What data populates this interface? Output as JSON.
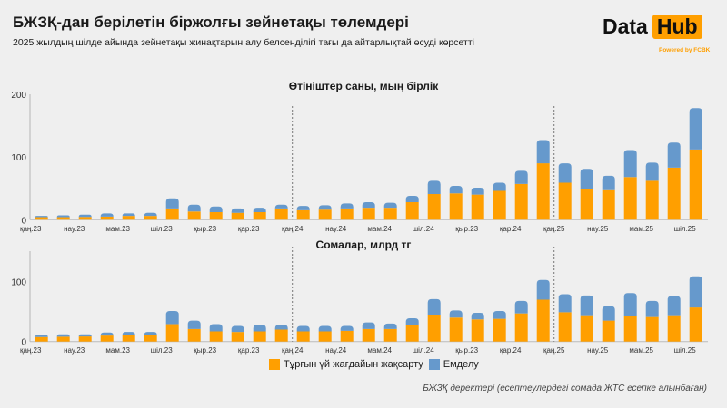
{
  "header": {
    "title": "БЖЗҚ-дан берілетін біржолғы зейнетақы төлемдері",
    "subtitle": "2025 жылдың шілде айында зейнетақы жинақтарын алу белсенділігі тағы да айтарлықтай өсуді көрсетті"
  },
  "logo": {
    "word1": "Data",
    "word2": "Hub",
    "tagline": "Powered by FCBK"
  },
  "colors": {
    "housing": "#ff9f00",
    "treatment": "#6699cc",
    "background": "#efefef"
  },
  "legend": {
    "items": [
      "Тұрғын үй жағдайын жақсарту",
      "Емделу"
    ]
  },
  "source": "БЖЗҚ деректері (есептеулердегі сомада ЖТС есепке алынбаған)",
  "chart_data": [
    {
      "type": "bar",
      "stacked": true,
      "title": "Өтініштер саны, мың бірлік",
      "ylim": [
        0,
        200
      ],
      "yticks": [
        0,
        100,
        200
      ],
      "xtick_labels": [
        "қаң.23",
        "нау.23",
        "мам.23",
        "шіл.23",
        "қыр.23",
        "қар.23",
        "қаң.24",
        "нау.24",
        "мам.24",
        "шіл.24",
        "қыр.23",
        "қар.24",
        "қаң.25",
        "нау.25",
        "мам.25",
        "шіл.25"
      ],
      "categories": [
        "2023-01",
        "2023-02",
        "2023-03",
        "2023-04",
        "2023-05",
        "2023-06",
        "2023-07",
        "2023-08",
        "2023-09",
        "2023-10",
        "2023-11",
        "2023-12",
        "2024-01",
        "2024-02",
        "2024-03",
        "2024-04",
        "2024-05",
        "2024-06",
        "2024-07",
        "2024-08",
        "2024-09",
        "2024-10",
        "2024-11",
        "2024-12",
        "2025-01",
        "2025-02",
        "2025-03",
        "2025-04",
        "2025-05",
        "2025-06",
        "2025-07"
      ],
      "year_separators": [
        "2024-01",
        "2025-01"
      ],
      "series": [
        {
          "name": "Тұрғын үй жағдайын жақсарту",
          "values": [
            4,
            4,
            4.5,
            5,
            6,
            6,
            18,
            13,
            12,
            11,
            12,
            18,
            15,
            16,
            18,
            19,
            19,
            28,
            41,
            42,
            40,
            46,
            57,
            90,
            59,
            49,
            47,
            68,
            62,
            83,
            112
          ]
        },
        {
          "name": "Емделу",
          "values": [
            2,
            3,
            3.5,
            5,
            4,
            5,
            16,
            11,
            9,
            7,
            7,
            6,
            7,
            7,
            8,
            9,
            8,
            10,
            21,
            12,
            11,
            13,
            21,
            37,
            31,
            32,
            23,
            43,
            29,
            40,
            66
          ]
        }
      ],
      "grid": false
    },
    {
      "type": "bar",
      "stacked": true,
      "title": "Сомалар, млрд тг",
      "ylim": [
        0,
        150
      ],
      "yticks": [
        0,
        100
      ],
      "xtick_labels": [
        "қаң.23",
        "нау.23",
        "мам.23",
        "шіл.23",
        "қыр.23",
        "қар.23",
        "қаң.24",
        "нау.24",
        "мам.24",
        "шіл.24",
        "қыр.23",
        "қар.24",
        "қаң.25",
        "нау.25",
        "мам.25",
        "шіл.25"
      ],
      "categories": [
        "2023-01",
        "2023-02",
        "2023-03",
        "2023-04",
        "2023-05",
        "2023-06",
        "2023-07",
        "2023-08",
        "2023-09",
        "2023-10",
        "2023-11",
        "2023-12",
        "2024-01",
        "2024-02",
        "2024-03",
        "2024-04",
        "2024-05",
        "2024-06",
        "2024-07",
        "2024-08",
        "2024-09",
        "2024-10",
        "2024-11",
        "2024-12",
        "2025-01",
        "2025-02",
        "2025-03",
        "2025-04",
        "2025-05",
        "2025-06",
        "2025-07"
      ],
      "year_separators": [
        "2024-01",
        "2025-01"
      ],
      "series": [
        {
          "name": "Тұрғын үй жағдайын жақсарту",
          "values": [
            7.5,
            8,
            8.5,
            10,
            11,
            11,
            29,
            21,
            17,
            16,
            17,
            20,
            17,
            17,
            18,
            21,
            21,
            27,
            45,
            40,
            37,
            38,
            47,
            70,
            49,
            44,
            35,
            43,
            41,
            44,
            57
          ]
        },
        {
          "name": "Емделу",
          "values": [
            3.5,
            4,
            3.5,
            5,
            5,
            5,
            22,
            14,
            12,
            10,
            11,
            8,
            9,
            9,
            8,
            11,
            9,
            12,
            26,
            12,
            11,
            13,
            21,
            33,
            30,
            33,
            24,
            38,
            27,
            32,
            52
          ]
        }
      ],
      "grid": false
    }
  ]
}
